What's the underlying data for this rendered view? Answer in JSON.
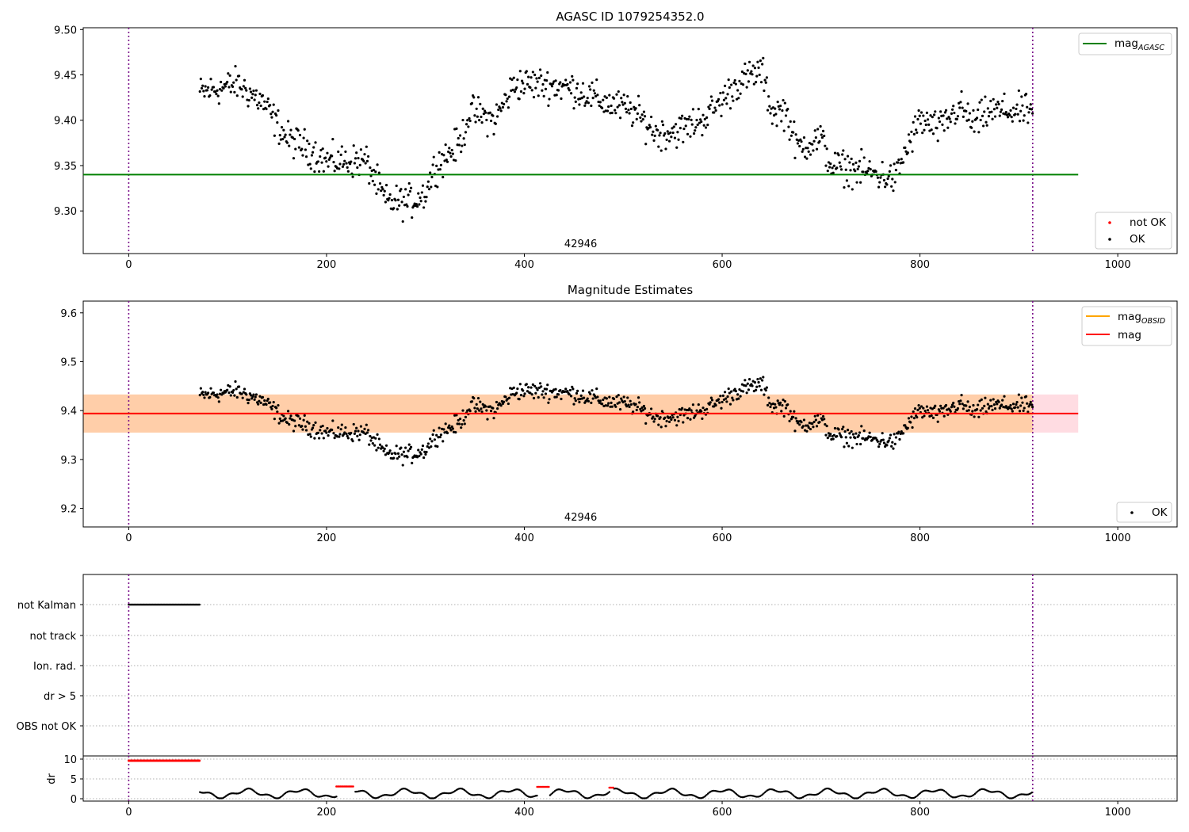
{
  "chart_data": [
    {
      "type": "scatter",
      "title": "AGASC ID 1079254352.0",
      "xlim": [
        -46,
        1060
      ],
      "ylim": [
        9.253,
        9.502
      ],
      "xticks": [
        0,
        200,
        400,
        600,
        800,
        1000
      ],
      "yticks": [
        9.3,
        9.35,
        9.4,
        9.45,
        9.5
      ],
      "ytick_labels": [
        "9.30",
        "9.35",
        "9.40",
        "9.45",
        "9.50"
      ],
      "obsid_label": "42946",
      "obsid_label_x": 457,
      "vlines": [
        0,
        914
      ],
      "mag_agasc": {
        "value": 9.34,
        "x_range": [
          -46,
          960
        ],
        "color": "#008000"
      },
      "legend_lines": {
        "label": "mag",
        "sub": "AGASC",
        "placement": "top-right"
      },
      "legend_points": {
        "entries": [
          "not OK",
          "OK"
        ],
        "colors": [
          "#ff0000",
          "#000000"
        ],
        "placement": "bottom-right"
      }
    },
    {
      "type": "scatter",
      "title": "Magnitude Estimates",
      "xlim": [
        -46,
        1060
      ],
      "ylim": [
        9.162,
        9.624
      ],
      "xticks": [
        0,
        200,
        400,
        600,
        800,
        1000
      ],
      "yticks": [
        9.2,
        9.3,
        9.4,
        9.5,
        9.6
      ],
      "ytick_labels": [
        "9.2",
        "9.3",
        "9.4",
        "9.5",
        "9.6"
      ],
      "obsid_label": "42946",
      "obsid_label_x": 457,
      "vlines": [
        0,
        914
      ],
      "mag": {
        "value": 9.394,
        "band": [
          9.355,
          9.433
        ],
        "x_range": [
          -46,
          960
        ],
        "color": "#ff0000"
      },
      "mag_obsid": {
        "value": 9.394,
        "band": [
          9.355,
          9.433
        ],
        "x_range": [
          -46,
          914
        ],
        "color": "#ffa500"
      },
      "legend_lines": {
        "entries": [
          {
            "label": "mag",
            "sub": "OBSID",
            "color": "#ffa500"
          },
          {
            "label": "mag",
            "sub": "",
            "color": "#ff0000"
          }
        ],
        "placement": "top-right"
      },
      "legend_points": {
        "entries": [
          "OK"
        ],
        "placement": "bottom-right"
      }
    },
    {
      "type": "scatter",
      "title": "",
      "xlim": [
        -46,
        1060
      ],
      "flag_labels": [
        "not Kalman",
        "not track",
        "Ion. rad.",
        "dr > 5",
        "OBS not OK"
      ],
      "not_kalman_x_range": [
        0,
        72
      ],
      "vlines": [
        0,
        914
      ]
    },
    {
      "type": "scatter",
      "ylabel": "dr",
      "xlim": [
        -46,
        1060
      ],
      "ylim": [
        -0.6,
        10.8
      ],
      "xticks": [
        0,
        200,
        400,
        600,
        800,
        1000
      ],
      "yticks": [
        0,
        5,
        10
      ],
      "ytick_labels": [
        "0",
        "5",
        "10"
      ],
      "vlines": [
        0,
        914
      ],
      "x_range": [
        72,
        914
      ],
      "red_segments": [
        [
          0,
          72,
          9.6
        ],
        [
          210,
          228,
          3.1
        ],
        [
          413,
          425,
          3.0
        ],
        [
          486,
          490,
          2.8
        ]
      ]
    }
  ]
}
